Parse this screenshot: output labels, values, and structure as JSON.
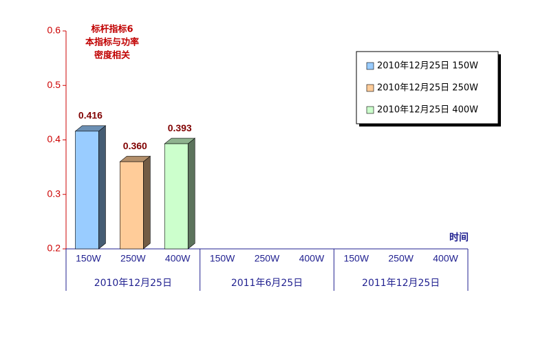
{
  "chart_data": {
    "type": "bar",
    "annotation": [
      "标杆指标6",
      "本指标与功率",
      "密度相关"
    ],
    "x_label": "时间",
    "categories": [
      "150W",
      "250W",
      "400W",
      "150W",
      "250W",
      "400W",
      "150W",
      "250W",
      "400W"
    ],
    "groups": [
      "2010年12月25日",
      "2011年6月25日",
      "2011年12月25日"
    ],
    "series": [
      {
        "name": "2010年12月25日  150W",
        "color": "#99ccff",
        "values": [
          0.416,
          null,
          null,
          null,
          null,
          null,
          null,
          null,
          null
        ],
        "value_labels": [
          "0.416",
          null,
          null,
          null,
          null,
          null,
          null,
          null,
          null
        ]
      },
      {
        "name": "2010年12月25日  250W",
        "color": "#ffcc99",
        "values": [
          null,
          0.36,
          null,
          null,
          null,
          null,
          null,
          null,
          null
        ],
        "value_labels": [
          null,
          "0.360",
          null,
          null,
          null,
          null,
          null,
          null,
          null
        ]
      },
      {
        "name": "2010年12月25日  400W",
        "color": "#ccffcc",
        "values": [
          null,
          null,
          0.393,
          null,
          null,
          null,
          null,
          null,
          null
        ],
        "value_labels": [
          null,
          null,
          "0.393",
          null,
          null,
          null,
          null,
          null,
          null
        ]
      }
    ],
    "ylim": [
      0.2,
      0.6
    ],
    "yticks": [
      0.2,
      0.3,
      0.4,
      0.5,
      0.6
    ],
    "legend": "upper right"
  }
}
